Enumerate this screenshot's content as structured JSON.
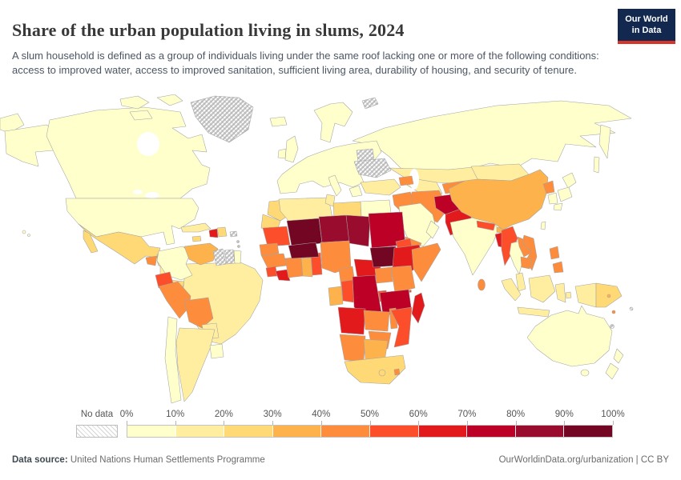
{
  "header": {
    "title": "Share of the urban population living in slums, 2024",
    "subtitle": "A slum household is defined as a group of individuals living under the same roof lacking one or more of the following conditions: access to improved water, access to improved sanitation, sufficient living area, durability of housing, and security of tenure.",
    "logo": {
      "line1": "Our World",
      "line2": "in Data",
      "bg_color": "#12284E",
      "accent_color": "#D8352A"
    }
  },
  "chart_data": {
    "type": "heatmap",
    "subtype": "choropleth-world-map",
    "title": "Share of the urban population living in slums",
    "year": 2024,
    "unit": "% of urban population",
    "legend": {
      "no_data_label": "No data",
      "tick_labels": [
        "0%",
        "10%",
        "20%",
        "30%",
        "40%",
        "50%",
        "60%",
        "70%",
        "80%",
        "90%",
        "100%"
      ],
      "bucket_colors": [
        "#FFFFCC",
        "#FFEDA0",
        "#FED976",
        "#FEB24C",
        "#FD8D3C",
        "#FC4E2A",
        "#E31A1C",
        "#BD0026",
        "#9A0C2E",
        "#720623"
      ],
      "bucket_ranges": [
        "0-10%",
        "10-20%",
        "20-30%",
        "30-40%",
        "40-50%",
        "50-60%",
        "60-70%",
        "70-80%",
        "80-90%",
        "90-100%"
      ],
      "no_data_color": "hatched-gray"
    },
    "regions": [
      {
        "name": "Canada",
        "bucket": 0,
        "range": "0-10%"
      },
      {
        "name": "United States",
        "bucket": 0,
        "range": "0-10%"
      },
      {
        "name": "Greenland",
        "bucket": null,
        "range": "No data"
      },
      {
        "name": "Mexico",
        "bucket": 2,
        "range": "20-30%"
      },
      {
        "name": "Belize",
        "bucket": null,
        "range": "No data"
      },
      {
        "name": "Guatemala",
        "bucket": 4,
        "range": "40-50%"
      },
      {
        "name": "Honduras",
        "bucket": 2,
        "range": "20-30%"
      },
      {
        "name": "Nicaragua",
        "bucket": 1,
        "range": "10-20%"
      },
      {
        "name": "Costa Rica",
        "bucket": 1,
        "range": "10-20%"
      },
      {
        "name": "Panama",
        "bucket": 2,
        "range": "20-30%"
      },
      {
        "name": "Cuba",
        "bucket": 1,
        "range": "10-20%"
      },
      {
        "name": "Jamaica",
        "bucket": 2,
        "range": "20-30%"
      },
      {
        "name": "Haiti",
        "bucket": 6,
        "range": "60-70%"
      },
      {
        "name": "Dominican Republic",
        "bucket": 2,
        "range": "20-30%"
      },
      {
        "name": "Puerto Rico",
        "bucket": null,
        "range": "No data"
      },
      {
        "name": "Trinidad and Tobago",
        "bucket": 4,
        "range": "40-50%"
      },
      {
        "name": "Colombia",
        "bucket": 0,
        "range": "0-10%"
      },
      {
        "name": "Venezuela",
        "bucket": 3,
        "range": "30-40%"
      },
      {
        "name": "Guyana",
        "bucket": null,
        "range": "No data"
      },
      {
        "name": "Suriname",
        "bucket": null,
        "range": "No data"
      },
      {
        "name": "French Guiana",
        "bucket": 0,
        "range": "0-10%"
      },
      {
        "name": "Ecuador",
        "bucket": 5,
        "range": "50-60%"
      },
      {
        "name": "Peru",
        "bucket": 4,
        "range": "40-50%"
      },
      {
        "name": "Bolivia",
        "bucket": 4,
        "range": "40-50%"
      },
      {
        "name": "Brazil",
        "bucket": 1,
        "range": "10-20%"
      },
      {
        "name": "Paraguay",
        "bucket": 1,
        "range": "10-20%"
      },
      {
        "name": "Uruguay",
        "bucket": 0,
        "range": "0-10%"
      },
      {
        "name": "Argentina",
        "bucket": 1,
        "range": "10-20%"
      },
      {
        "name": "Chile",
        "bucket": 0,
        "range": "0-10%"
      },
      {
        "name": "Europe (most countries)",
        "bucket": 0,
        "range": "0-10%"
      },
      {
        "name": "United Kingdom",
        "bucket": 0,
        "range": "0-10%"
      },
      {
        "name": "Ireland",
        "bucket": 0,
        "range": "0-10%"
      },
      {
        "name": "Iceland",
        "bucket": 0,
        "range": "0-10%"
      },
      {
        "name": "Ukraine",
        "bucket": null,
        "range": "No data"
      },
      {
        "name": "Belarus",
        "bucket": null,
        "range": "No data"
      },
      {
        "name": "Svalbard",
        "bucket": null,
        "range": "No data"
      },
      {
        "name": "Russia",
        "bucket": 0,
        "range": "0-10%"
      },
      {
        "name": "Kazakhstan",
        "bucket": 1,
        "range": "10-20%"
      },
      {
        "name": "Turkey",
        "bucket": 1,
        "range": "10-20%"
      },
      {
        "name": "Caucasus (Georgia, Armenia, Azerbaijan)",
        "bucket": 4,
        "range": "40-50%"
      },
      {
        "name": "Syria and Iraq",
        "bucket": 4,
        "range": "40-50%"
      },
      {
        "name": "Iran",
        "bucket": 4,
        "range": "40-50%"
      },
      {
        "name": "Saudi Arabia",
        "bucket": 0,
        "range": "0-10%"
      },
      {
        "name": "Yemen",
        "bucket": 4,
        "range": "40-50%"
      },
      {
        "name": "Oman",
        "bucket": 0,
        "range": "0-10%"
      },
      {
        "name": "Turkmenistan and Uzbekistan",
        "bucket": 1,
        "range": "10-20%"
      },
      {
        "name": "Kyrgyzstan and Tajikistan",
        "bucket": 4,
        "range": "40-50%"
      },
      {
        "name": "Afghanistan",
        "bucket": 7,
        "range": "70-80%"
      },
      {
        "name": "Pakistan",
        "bucket": 6,
        "range": "60-70%"
      },
      {
        "name": "India",
        "bucket": 0,
        "range": "0-10%"
      },
      {
        "name": "Nepal",
        "bucket": 5,
        "range": "50-60%"
      },
      {
        "name": "Bhutan",
        "bucket": 3,
        "range": "30-40%"
      },
      {
        "name": "Bangladesh",
        "bucket": 6,
        "range": "60-70%"
      },
      {
        "name": "Sri Lanka",
        "bucket": 4,
        "range": "40-50%"
      },
      {
        "name": "Myanmar",
        "bucket": 5,
        "range": "50-60%"
      },
      {
        "name": "Thailand",
        "bucket": 0,
        "range": "0-10%"
      },
      {
        "name": "Laos",
        "bucket": 4,
        "range": "40-50%"
      },
      {
        "name": "Vietnam",
        "bucket": 4,
        "range": "40-50%"
      },
      {
        "name": "Cambodia",
        "bucket": 4,
        "range": "40-50%"
      },
      {
        "name": "Malaysia",
        "bucket": 1,
        "range": "10-20%"
      },
      {
        "name": "Indonesia",
        "bucket": 1,
        "range": "10-20%"
      },
      {
        "name": "Philippines",
        "bucket": 4,
        "range": "40-50%"
      },
      {
        "name": "Timor-Leste",
        "bucket": 4,
        "range": "40-50%"
      },
      {
        "name": "China",
        "bucket": 3,
        "range": "30-40%"
      },
      {
        "name": "Mongolia",
        "bucket": 1,
        "range": "10-20%"
      },
      {
        "name": "North Korea",
        "bucket": 4,
        "range": "40-50%"
      },
      {
        "name": "South Korea",
        "bucket": 0,
        "range": "0-10%"
      },
      {
        "name": "Japan",
        "bucket": 0,
        "range": "0-10%"
      },
      {
        "name": "Taiwan",
        "bucket": 0,
        "range": "0-10%"
      },
      {
        "name": "Papua New Guinea",
        "bucket": 2,
        "range": "20-30%"
      },
      {
        "name": "Australia",
        "bucket": 0,
        "range": "0-10%"
      },
      {
        "name": "New Zealand",
        "bucket": 0,
        "range": "0-10%"
      },
      {
        "name": "Solomon Islands",
        "bucket": 3,
        "range": "30-40%"
      },
      {
        "name": "Vanuatu",
        "bucket": 4,
        "range": "40-50%"
      },
      {
        "name": "Fiji",
        "bucket": null,
        "range": "No data"
      },
      {
        "name": "New Caledonia",
        "bucket": null,
        "range": "No data"
      },
      {
        "name": "Morocco",
        "bucket": 2,
        "range": "20-30%"
      },
      {
        "name": "Western Sahara",
        "bucket": 2,
        "range": "20-30%"
      },
      {
        "name": "Algeria",
        "bucket": 1,
        "range": "10-20%"
      },
      {
        "name": "Tunisia",
        "bucket": 1,
        "range": "10-20%"
      },
      {
        "name": "Libya",
        "bucket": 2,
        "range": "20-30%"
      },
      {
        "name": "Egypt",
        "bucket": 0,
        "range": "0-10%"
      },
      {
        "name": "Mauritania",
        "bucket": 5,
        "range": "50-60%"
      },
      {
        "name": "Senegal",
        "bucket": 4,
        "range": "40-50%"
      },
      {
        "name": "Guinea",
        "bucket": 4,
        "range": "40-50%"
      },
      {
        "name": "Sierra Leone",
        "bucket": 5,
        "range": "50-60%"
      },
      {
        "name": "Liberia",
        "bucket": 6,
        "range": "60-70%"
      },
      {
        "name": "Cote d'Ivoire",
        "bucket": 4,
        "range": "40-50%"
      },
      {
        "name": "Ghana",
        "bucket": 3,
        "range": "30-40%"
      },
      {
        "name": "Togo and Benin",
        "bucket": 5,
        "range": "50-60%"
      },
      {
        "name": "Burkina Faso",
        "bucket": 9,
        "range": "90-100%"
      },
      {
        "name": "Mali",
        "bucket": 9,
        "range": "90-100%"
      },
      {
        "name": "Niger",
        "bucket": 8,
        "range": "80-90%"
      },
      {
        "name": "Chad",
        "bucket": 8,
        "range": "80-90%"
      },
      {
        "name": "Sudan",
        "bucket": 7,
        "range": "70-80%"
      },
      {
        "name": "South Sudan",
        "bucket": 9,
        "range": "90-100%"
      },
      {
        "name": "Eritrea",
        "bucket": 5,
        "range": "50-60%"
      },
      {
        "name": "Djibouti",
        "bucket": 4,
        "range": "40-50%"
      },
      {
        "name": "Ethiopia",
        "bucket": 6,
        "range": "60-70%"
      },
      {
        "name": "Somalia",
        "bucket": 4,
        "range": "40-50%"
      },
      {
        "name": "Nigeria",
        "bucket": 4,
        "range": "40-50%"
      },
      {
        "name": "Cameroon",
        "bucket": 4,
        "range": "40-50%"
      },
      {
        "name": "Central African Republic",
        "bucket": 6,
        "range": "60-70%"
      },
      {
        "name": "Uganda",
        "bucket": 4,
        "range": "40-50%"
      },
      {
        "name": "Kenya",
        "bucket": 4,
        "range": "40-50%"
      },
      {
        "name": "Gabon",
        "bucket": 3,
        "range": "30-40%"
      },
      {
        "name": "Congo",
        "bucket": 5,
        "range": "50-60%"
      },
      {
        "name": "Democratic Republic of Congo",
        "bucket": 7,
        "range": "70-80%"
      },
      {
        "name": "Rwanda and Burundi",
        "bucket": 5,
        "range": "50-60%"
      },
      {
        "name": "Tanzania",
        "bucket": 7,
        "range": "70-80%"
      },
      {
        "name": "Angola",
        "bucket": 6,
        "range": "60-70%"
      },
      {
        "name": "Zambia",
        "bucket": 4,
        "range": "40-50%"
      },
      {
        "name": "Malawi",
        "bucket": 4,
        "range": "40-50%"
      },
      {
        "name": "Mozambique",
        "bucket": 5,
        "range": "50-60%"
      },
      {
        "name": "Zimbabwe",
        "bucket": 4,
        "range": "40-50%"
      },
      {
        "name": "Namibia",
        "bucket": 4,
        "range": "40-50%"
      },
      {
        "name": "Botswana",
        "bucket": 3,
        "range": "30-40%"
      },
      {
        "name": "South Africa",
        "bucket": 2,
        "range": "20-30%"
      },
      {
        "name": "Lesotho",
        "bucket": 2,
        "range": "20-30%"
      },
      {
        "name": "Eswatini",
        "bucket": 4,
        "range": "40-50%"
      },
      {
        "name": "Madagascar",
        "bucket": 6,
        "range": "60-70%"
      },
      {
        "name": "Comoros",
        "bucket": 5,
        "range": "50-60%"
      }
    ]
  },
  "footer": {
    "source_label": "Data source:",
    "source_text": " United Nations Human Settlements Programme",
    "credit": "OurWorldinData.org/urbanization | CC BY"
  }
}
